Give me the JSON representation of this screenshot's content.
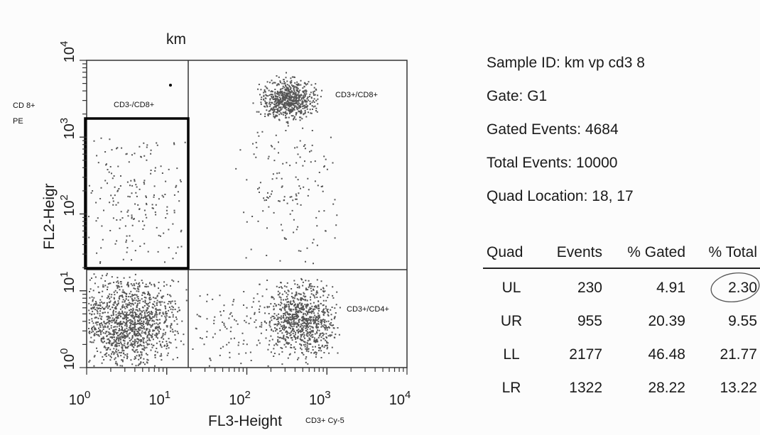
{
  "plot": {
    "title": "km",
    "y_side_label": [
      "CD 8+",
      "PE"
    ],
    "y_axis_label": "FL2-Heigr",
    "x_axis_label": "FL3-Height",
    "x_side_label": "CD3+ Cy-5",
    "y_ticks": [
      {
        "base": "10",
        "exponent": "0"
      },
      {
        "base": "10",
        "exponent": "1"
      },
      {
        "base": "10",
        "exponent": "2"
      },
      {
        "base": "10",
        "exponent": "3"
      },
      {
        "base": "10",
        "exponent": "4"
      }
    ],
    "x_ticks": [
      {
        "base": "10",
        "exponent": "0"
      },
      {
        "base": "10",
        "exponent": "1"
      },
      {
        "base": "10",
        "exponent": "2"
      },
      {
        "base": "10",
        "exponent": "3"
      },
      {
        "base": "10",
        "exponent": "4"
      }
    ],
    "quadrant_labels": {
      "ul": "CD3-/CD8+",
      "ur": "CD3+/CD8+",
      "lr": "CD3+/CD4+"
    }
  },
  "info": [
    "Sample ID: km vp cd3 8",
    "Gate: G1",
    "Gated Events: 4684",
    "Total Events: 10000",
    "Quad Location: 18, 17"
  ],
  "table": {
    "header": [
      "Quad",
      "Events",
      "% Gated",
      "% Total"
    ],
    "rows": [
      [
        "UL",
        "230",
        "4.91",
        "2.30"
      ],
      [
        "UR",
        "955",
        "20.39",
        "9.55"
      ],
      [
        "LL",
        "2177",
        "46.48",
        "21.77"
      ],
      [
        "LR",
        "1322",
        "28.22",
        "13.22"
      ]
    ]
  }
}
